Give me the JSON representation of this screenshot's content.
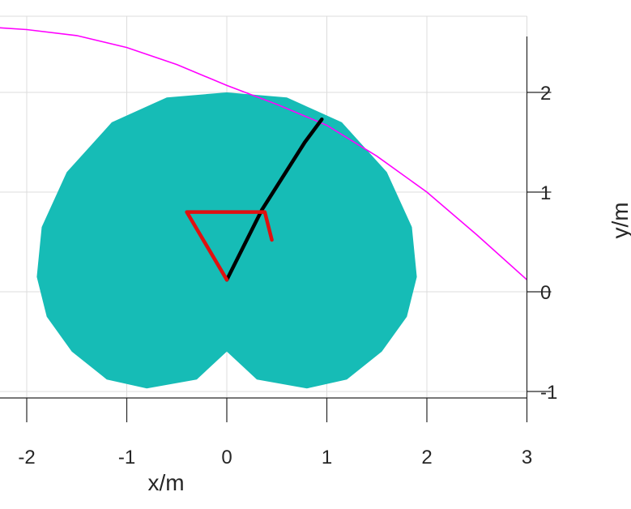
{
  "chart_data": {
    "type": "line",
    "title": "",
    "xlabel": "x/m",
    "ylabel": "y/m",
    "xlim": [
      -2.3,
      3
    ],
    "ylim": [
      -1.05,
      2.6
    ],
    "xticks": [
      -2,
      -1,
      0,
      1,
      2,
      3
    ],
    "xtick_labels": [
      "-2",
      "-1",
      "0",
      "1",
      "2",
      "3"
    ],
    "yticks": [
      -1,
      0,
      1,
      2
    ],
    "ytick_labels": [
      "-1",
      "0",
      "1",
      "2"
    ],
    "y_axis_location": "right",
    "grid": true,
    "colors": {
      "region": "#16bcb6",
      "trajectory": "#ff00ff",
      "arm_black": "#000000",
      "arm_red": "#e01010",
      "grid": "#dcdcdc",
      "axis": "#262626"
    },
    "series": [
      {
        "type": "area",
        "x": [
          0,
          -0.3,
          -0.8,
          -1.2,
          -1.55,
          -1.8,
          -1.9,
          -1.85,
          -1.6,
          -1.15,
          -0.6,
          0,
          0.6,
          1.15,
          1.6,
          1.85,
          1.9,
          1.8,
          1.55,
          1.2,
          0.8,
          0.3,
          0
        ],
        "y": [
          -0.6,
          -0.88,
          -0.97,
          -0.88,
          -0.6,
          -0.25,
          0.15,
          0.65,
          1.2,
          1.7,
          1.95,
          2.0,
          1.95,
          1.7,
          1.2,
          0.65,
          0.15,
          -0.25,
          -0.6,
          -0.88,
          -0.97,
          -0.88,
          -0.6
        ]
      },
      {
        "type": "line",
        "x": [
          -2.3,
          -2.0,
          -1.5,
          -1.0,
          -0.5,
          0,
          0.5,
          1.0,
          1.5,
          2.0,
          2.5,
          3.0
        ],
        "y": [
          2.65,
          2.63,
          2.57,
          2.45,
          2.28,
          2.07,
          1.88,
          1.67,
          1.36,
          1.0,
          0.57,
          0.12
        ]
      },
      {
        "type": "line",
        "x": [
          0,
          0.35,
          0.78,
          0.95
        ],
        "y": [
          0.12,
          0.82,
          1.5,
          1.73
        ]
      },
      {
        "type": "line",
        "x": [
          0,
          -0.4,
          0.38,
          0.45
        ],
        "y": [
          0.12,
          0.8,
          0.8,
          0.52
        ]
      }
    ]
  }
}
